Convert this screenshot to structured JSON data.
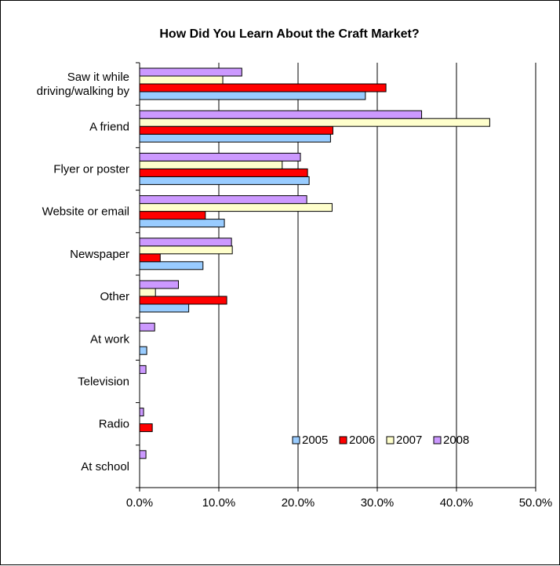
{
  "chart_data": {
    "type": "bar",
    "orientation": "horizontal",
    "title": "How Did You Learn About the Craft Market?",
    "xlabel": "",
    "ylabel": "",
    "xlim": [
      0,
      50
    ],
    "x_ticks": [
      "0.0%",
      "10.0%",
      "20.0%",
      "30.0%",
      "40.0%",
      "50.0%"
    ],
    "grid": "vertical gridlines",
    "legend_position": "bottom-right",
    "categories": [
      [
        "Saw it while",
        "driving/walking by"
      ],
      [
        "A friend"
      ],
      [
        "Flyer or poster"
      ],
      [
        "Website or email"
      ],
      [
        "Newspaper"
      ],
      [
        "Other"
      ],
      [
        "At work"
      ],
      [
        "Television"
      ],
      [
        "Radio"
      ],
      [
        "At school"
      ]
    ],
    "series": [
      {
        "name": "2005",
        "color": "#99ccff",
        "values": [
          28.5,
          24.1,
          21.4,
          10.7,
          8.0,
          6.2,
          0.9,
          0,
          0,
          0
        ]
      },
      {
        "name": "2006",
        "color": "#ff0000",
        "values": [
          31.1,
          24.4,
          21.2,
          8.3,
          2.6,
          11.0,
          0,
          0,
          1.6,
          0
        ]
      },
      {
        "name": "2007",
        "color": "#ffffcc",
        "values": [
          10.5,
          44.2,
          18.0,
          24.3,
          11.7,
          2.0,
          0,
          0,
          0,
          0
        ]
      },
      {
        "name": "2008",
        "color": "#cc99ff",
        "values": [
          12.9,
          35.6,
          20.3,
          21.1,
          11.6,
          4.9,
          1.9,
          0.8,
          0.5,
          0.8
        ]
      }
    ]
  }
}
